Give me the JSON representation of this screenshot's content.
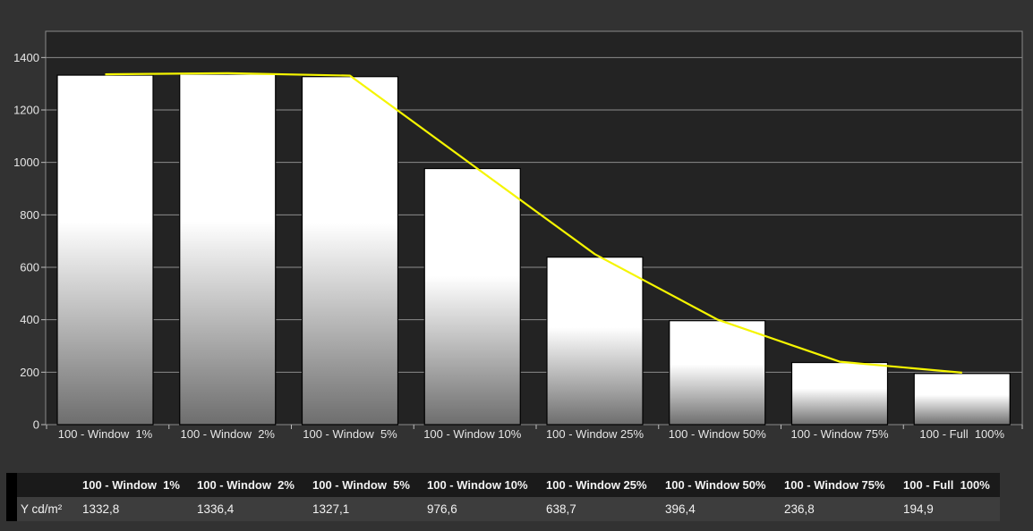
{
  "chart_data": {
    "type": "bar",
    "categories": [
      "100 - Window  1%",
      "100 - Window  2%",
      "100 - Window  5%",
      "100 - Window 10%",
      "100 - Window 25%",
      "100 - Window 50%",
      "100 - Window 75%",
      "100 - Full  100%"
    ],
    "values": [
      1332.8,
      1336.4,
      1327.1,
      976.6,
      638.7,
      396.4,
      236.8,
      194.9
    ],
    "line_values": [
      1336,
      1340,
      1331,
      990,
      650,
      401,
      240,
      198
    ],
    "ylim": [
      0,
      1500
    ],
    "yticks": [
      "0",
      "200",
      "400",
      "600",
      "800",
      "1000",
      "1200",
      "1400"
    ],
    "grid": true,
    "colors": {
      "plot_bg": "#232323",
      "grid": "#8c8c8c",
      "bar_top": "#ffffff",
      "bar_bottom": "#707070",
      "line": "#f5f500"
    }
  },
  "table": {
    "headers": [
      "100 - Window  1%",
      "100 - Window  2%",
      "100 - Window  5%",
      "100 - Window 10%",
      "100 - Window 25%",
      "100 - Window 50%",
      "100 - Window 75%",
      "100 - Full  100%"
    ],
    "row_label": "Y cd/m²",
    "values": [
      "1332,8",
      "1336,4",
      "1327,1",
      "976,6",
      "638,7",
      "396,4",
      "236,8",
      "194,9"
    ]
  }
}
